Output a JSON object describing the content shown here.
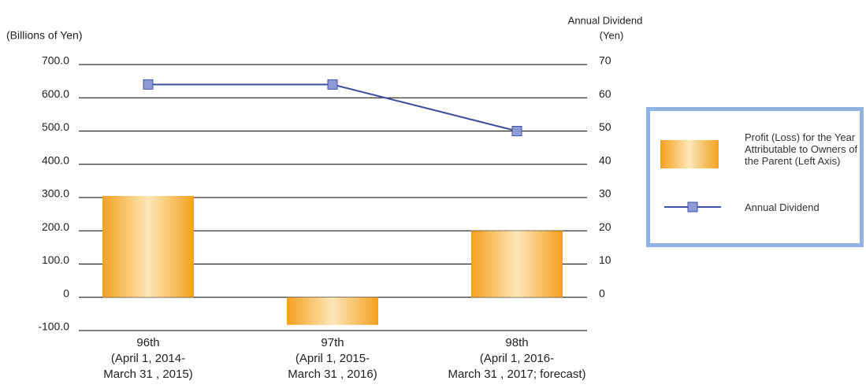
{
  "chart_data": {
    "type": "bar_line",
    "y_label": "(Billions of Yen)",
    "y2_label": [
      "Annual Dividend",
      "(Yen)"
    ],
    "categories": [
      [
        "96th",
        "(April 1, 2014-",
        "March 31 , 2015)"
      ],
      [
        "97th",
        "(April 1, 2015-",
        "March 31 , 2016)"
      ],
      [
        "98th",
        "(April 1, 2016-",
        "March 31 , 2017; forecast)"
      ]
    ],
    "series": [
      {
        "name": "Profit (Loss) for the Year Attributable to Owners of the Parent (Left Axis)",
        "type": "bar",
        "color": "#f5a623",
        "values": [
          305,
          -83,
          200
        ]
      },
      {
        "name": "Annual Dividend",
        "type": "line",
        "axis": "y2",
        "color": "#3f4f9f",
        "values": [
          64,
          64,
          50
        ]
      }
    ],
    "ylim": [
      -100,
      700
    ],
    "yticks": [
      {
        "value": -100,
        "label": "-100.0"
      },
      0,
      {
        "value": 100,
        "label": "100.0"
      },
      {
        "value": 200,
        "label": "200.0"
      },
      {
        "value": 300,
        "label": "300.0"
      },
      {
        "value": 400,
        "label": "400.0"
      },
      {
        "value": 500,
        "label": "500.0"
      },
      {
        "value": 600,
        "label": "600.0"
      },
      {
        "value": 700,
        "label": "700.0"
      }
    ],
    "y2lim": [
      -10,
      70
    ],
    "y2ticks": [
      0,
      10,
      20,
      30,
      40,
      50,
      60,
      70
    ],
    "grid": true
  }
}
